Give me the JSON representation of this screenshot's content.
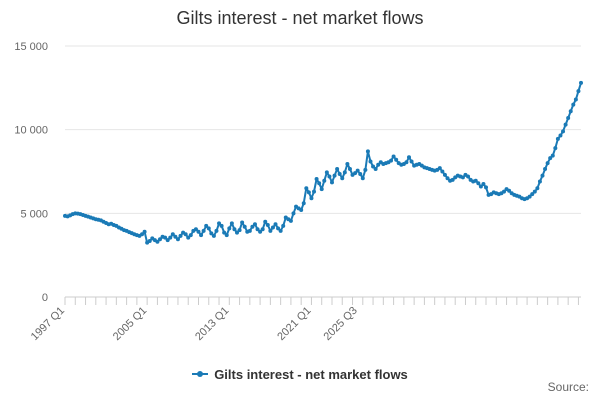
{
  "colors": {
    "series": "#1a7ab6",
    "grid": "#e6e6e6",
    "axis": "#cccccc",
    "text": "#666666"
  },
  "legend": {
    "position": "bottom-center",
    "marker_icon": "line-with-dot-icon"
  },
  "source_label": "Source:",
  "chart_data": {
    "type": "line",
    "title": "Gilts interest - net market flows",
    "xlabel": "",
    "ylabel": "",
    "ylim": [
      0,
      15000
    ],
    "yticks": [
      0,
      5000,
      10000,
      15000
    ],
    "yticklabels": [
      "0",
      "5 000",
      "10 000",
      "15 000"
    ],
    "grid": true,
    "x_start": "1997 Q1",
    "x_end": "2025 Q3",
    "xticklabels": [
      "1997 Q1",
      "2005 Q1",
      "2013 Q1",
      "2021 Q1",
      "2025 Q3"
    ],
    "series": [
      {
        "name": "Gilts interest - net market flows",
        "values": [
          4850,
          4820,
          4880,
          4950,
          5000,
          4980,
          4950,
          4900,
          4850,
          4800,
          4750,
          4700,
          4650,
          4620,
          4580,
          4500,
          4420,
          4350,
          4380,
          4300,
          4250,
          4150,
          4080,
          4000,
          3950,
          3880,
          3820,
          3750,
          3700,
          3650,
          3750,
          3900,
          3250,
          3350,
          3500,
          3400,
          3300,
          3450,
          3600,
          3550,
          3400,
          3550,
          3750,
          3600,
          3450,
          3650,
          3850,
          3750,
          3550,
          3700,
          3950,
          4050,
          3900,
          3700,
          3950,
          4250,
          4100,
          3800,
          3650,
          3950,
          4400,
          4250,
          3850,
          3700,
          4100,
          4400,
          4050,
          3850,
          4000,
          4450,
          4200,
          3900,
          3950,
          4200,
          4350,
          4050,
          3900,
          4050,
          4500,
          4300,
          3950,
          4150,
          4350,
          4100,
          3950,
          4250,
          4750,
          4650,
          4550,
          5000,
          5400,
          5300,
          5200,
          5600,
          6500,
          6250,
          5900,
          6300,
          7050,
          6800,
          6450,
          6950,
          7450,
          7200,
          6850,
          7250,
          7650,
          7350,
          7100,
          7450,
          7950,
          7650,
          7300,
          7400,
          7550,
          7350,
          7100,
          7600,
          8700,
          8100,
          7800,
          7650,
          7900,
          8050,
          7950,
          8000,
          8050,
          8150,
          8400,
          8200,
          8000,
          7900,
          7950,
          8050,
          8350,
          8100,
          7850,
          7900,
          7950,
          7850,
          7750,
          7700,
          7650,
          7600,
          7550,
          7600,
          7700,
          7500,
          7300,
          7100,
          6950,
          7000,
          7150,
          7250,
          7200,
          7150,
          7300,
          7200,
          7000,
          6900,
          6950,
          6800,
          6600,
          6750,
          6550,
          6100,
          6150,
          6250,
          6200,
          6150,
          6200,
          6300,
          6450,
          6350,
          6200,
          6100,
          6050,
          6000,
          5900,
          5850,
          5900,
          6000,
          6150,
          6300,
          6500,
          6900,
          7250,
          7650,
          8000,
          8300,
          8450,
          8900,
          9450,
          9650,
          9900,
          10300,
          10700,
          11100,
          11500,
          11800,
          12300,
          12800
        ]
      }
    ]
  }
}
